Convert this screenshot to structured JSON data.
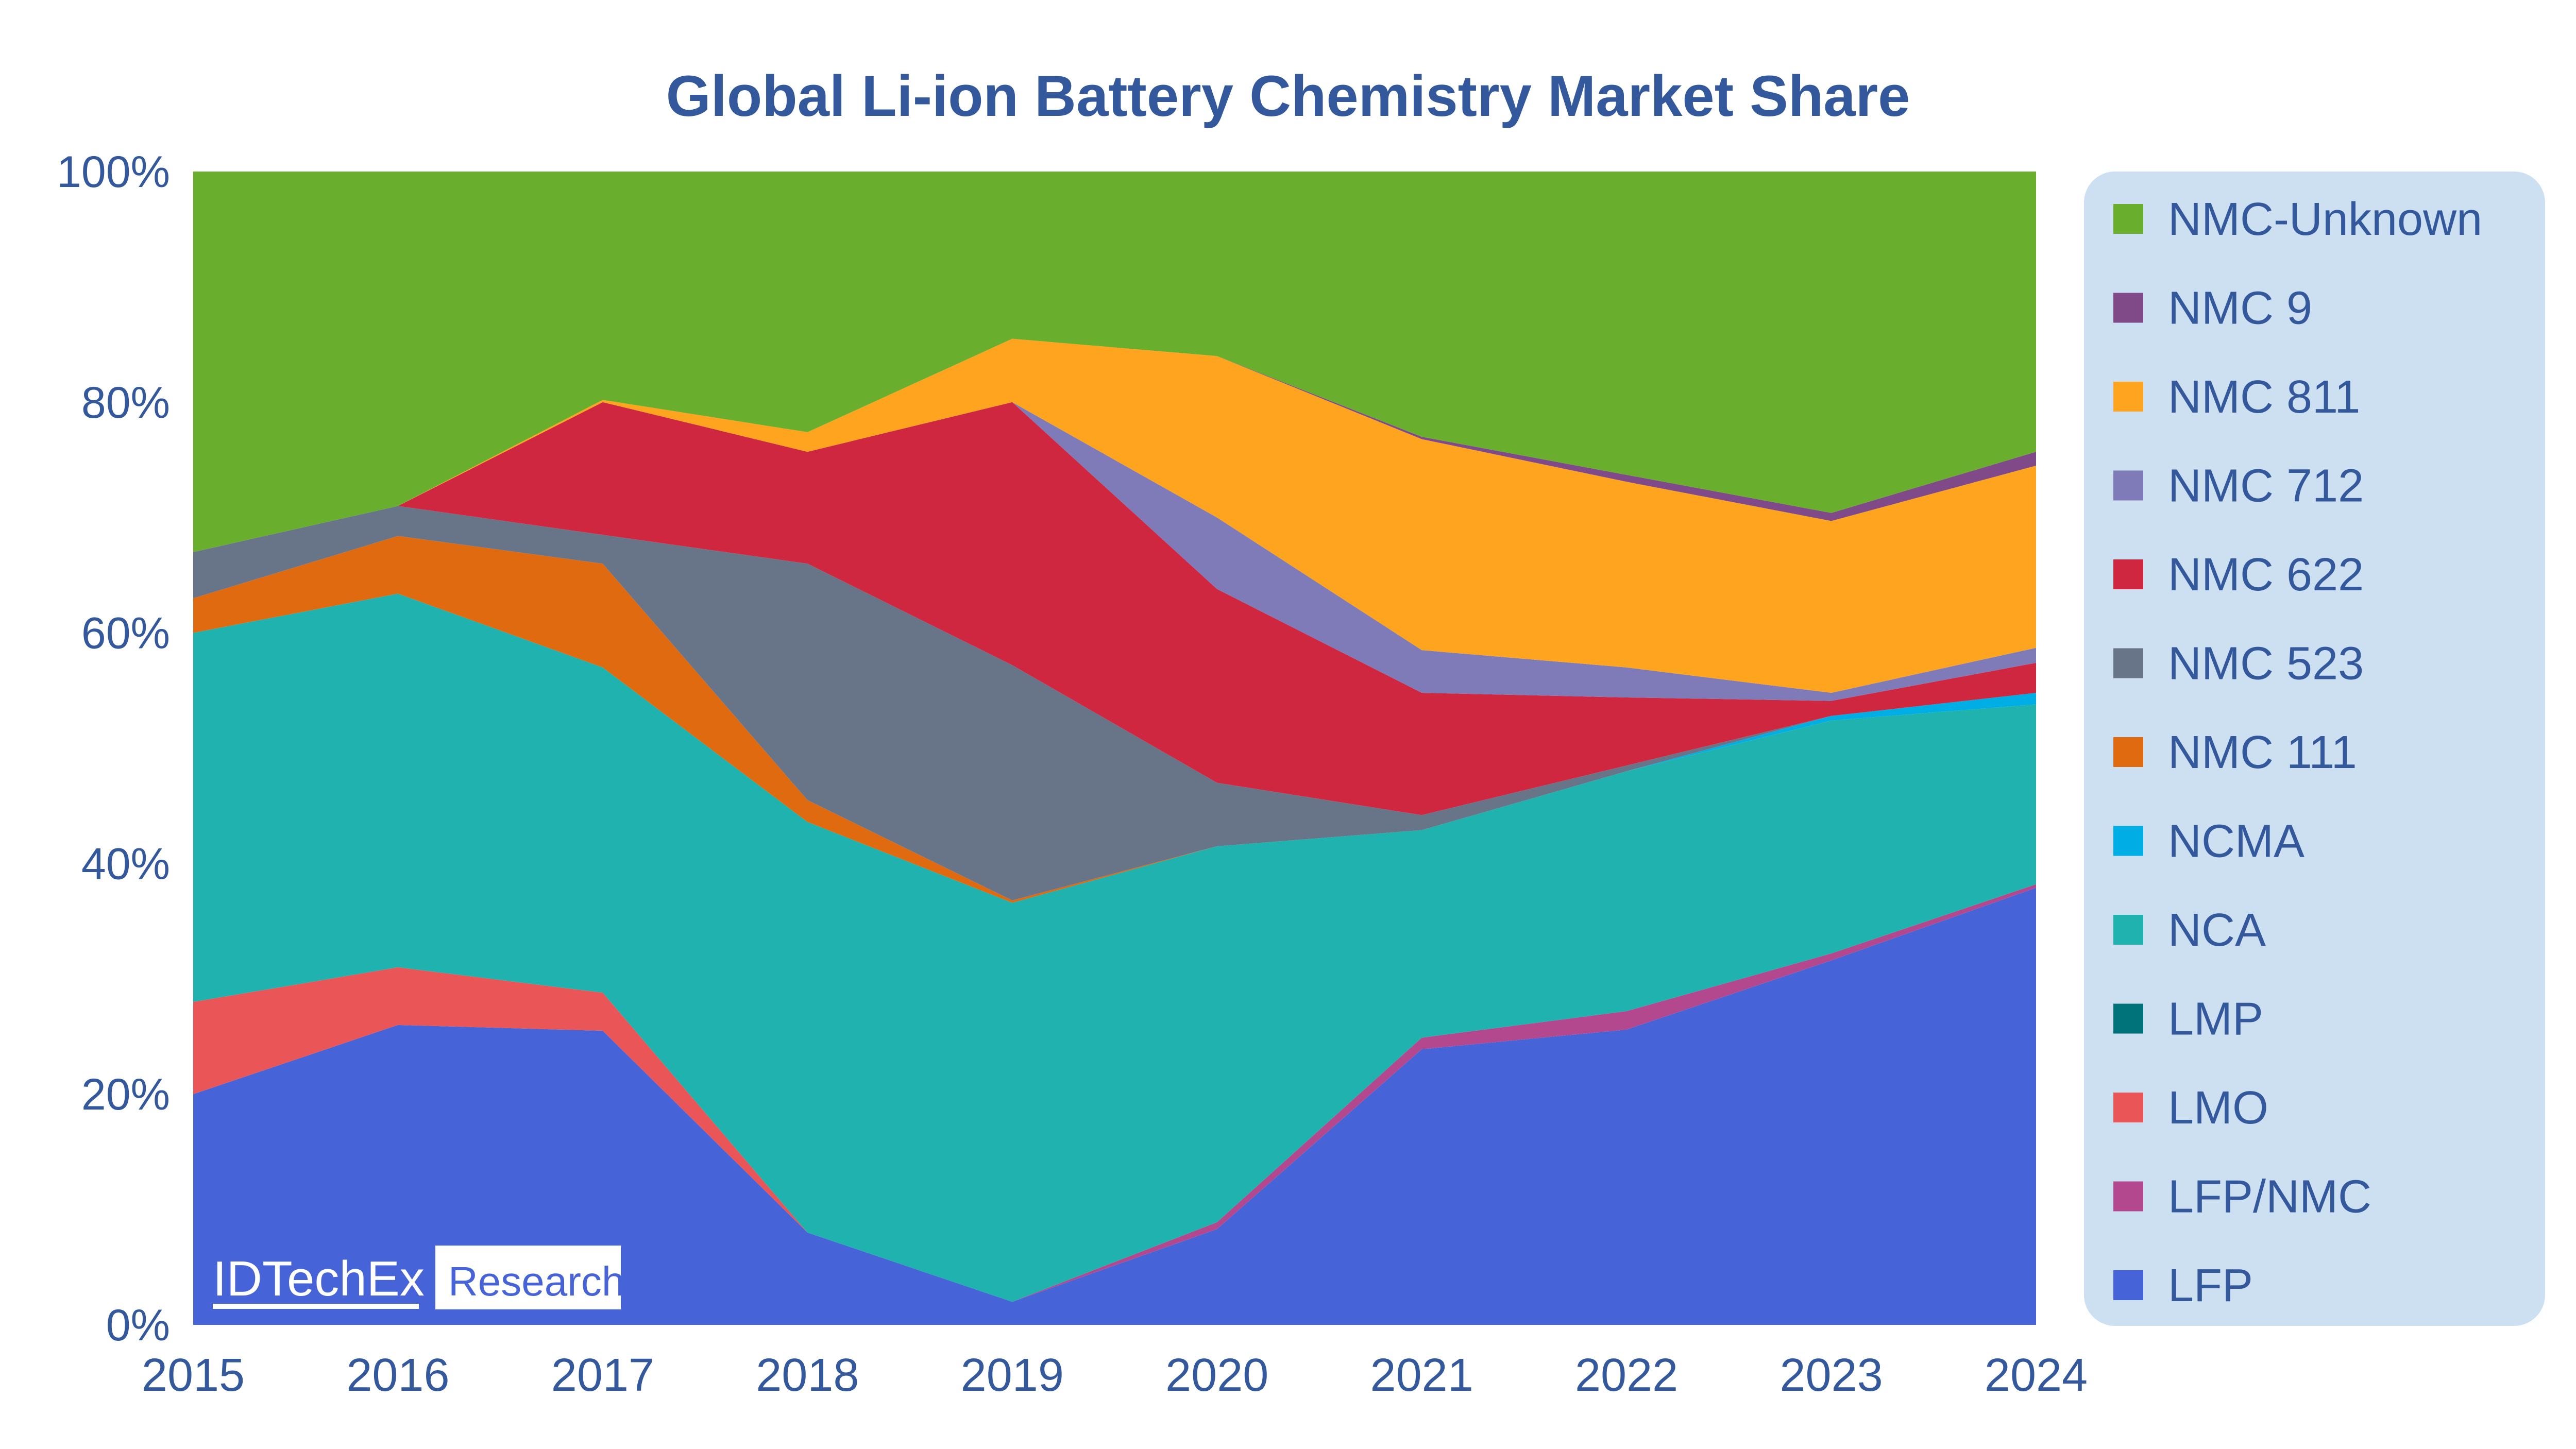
{
  "chart_data": {
    "type": "area",
    "stacked": true,
    "title": "Global Li-ion Battery Chemistry Market Share",
    "xlabel": "",
    "ylabel": "",
    "x": [
      "2015",
      "2016",
      "2017",
      "2018",
      "2019",
      "2020",
      "2021",
      "2022",
      "2023",
      "2024"
    ],
    "ylim": [
      0,
      100
    ],
    "yticks": [
      "0%",
      "20%",
      "40%",
      "60%",
      "80%",
      "100%"
    ],
    "grid": false,
    "legend_position": "right",
    "text_color": "#34589c",
    "legend_bg": "#cde0f1",
    "series": [
      {
        "name": "LFP",
        "color": "#4763d8",
        "values": [
          20,
          26,
          25.5,
          8,
          2,
          8.3,
          23.9,
          25.6,
          31.6,
          37.9
        ]
      },
      {
        "name": "LFP/NMC",
        "color": "#b4488f",
        "values": [
          0,
          0,
          0,
          0,
          0,
          0.6,
          1,
          1.6,
          0.6,
          0.3
        ]
      },
      {
        "name": "LMO",
        "color": "#ea5657",
        "values": [
          8,
          5,
          3.3,
          0,
          0,
          0,
          0,
          0,
          0,
          0
        ]
      },
      {
        "name": "LMP",
        "color": "#00737a",
        "values": [
          0,
          0,
          0,
          0,
          0,
          0,
          0,
          0,
          0,
          0
        ]
      },
      {
        "name": "NCA",
        "color": "#1fb2ae",
        "values": [
          32,
          32.4,
          28.2,
          35.6,
          34.6,
          32.6,
          18,
          20.8,
          20.2,
          15.6
        ]
      },
      {
        "name": "NCMA",
        "color": "#00aee6",
        "values": [
          0,
          0,
          0,
          0,
          0,
          0,
          0,
          0,
          0.4,
          1
        ]
      },
      {
        "name": "NMC 111",
        "color": "#e06a10",
        "values": [
          3,
          5,
          9,
          1.9,
          0.2,
          0,
          0,
          0,
          0,
          0
        ]
      },
      {
        "name": "NMC 523",
        "color": "#687589",
        "values": [
          4,
          2.6,
          2.5,
          20.5,
          20.4,
          5.5,
          1.3,
          0.5,
          0,
          0
        ]
      },
      {
        "name": "NMC 622",
        "color": "#d02741",
        "values": [
          0,
          0,
          11.5,
          9.7,
          22.8,
          16.8,
          10.6,
          5.9,
          1.3,
          2.6
        ]
      },
      {
        "name": "NMC 712",
        "color": "#7f7ab8",
        "values": [
          0,
          0,
          0,
          0,
          0,
          6.2,
          3.7,
          2.6,
          0.7,
          1.3
        ]
      },
      {
        "name": "NMC 811",
        "color": "#ffa41f",
        "values": [
          0,
          0,
          0.2,
          1.7,
          5.5,
          14,
          18.3,
          16.1,
          14.9,
          15.8
        ]
      },
      {
        "name": "NMC 9",
        "color": "#7f4a87",
        "values": [
          0,
          0,
          0,
          0,
          0,
          0,
          0.2,
          0.6,
          0.7,
          1.2
        ]
      },
      {
        "name": "NMC-Unknown",
        "color": "#6aae2d",
        "values": [
          33,
          29,
          19.8,
          22.6,
          14.5,
          16,
          23,
          26.3,
          29.6,
          24.3
        ]
      }
    ]
  },
  "logo": {
    "brand": "IDTechEx",
    "tag": "Research",
    "color": "#4763d8"
  }
}
